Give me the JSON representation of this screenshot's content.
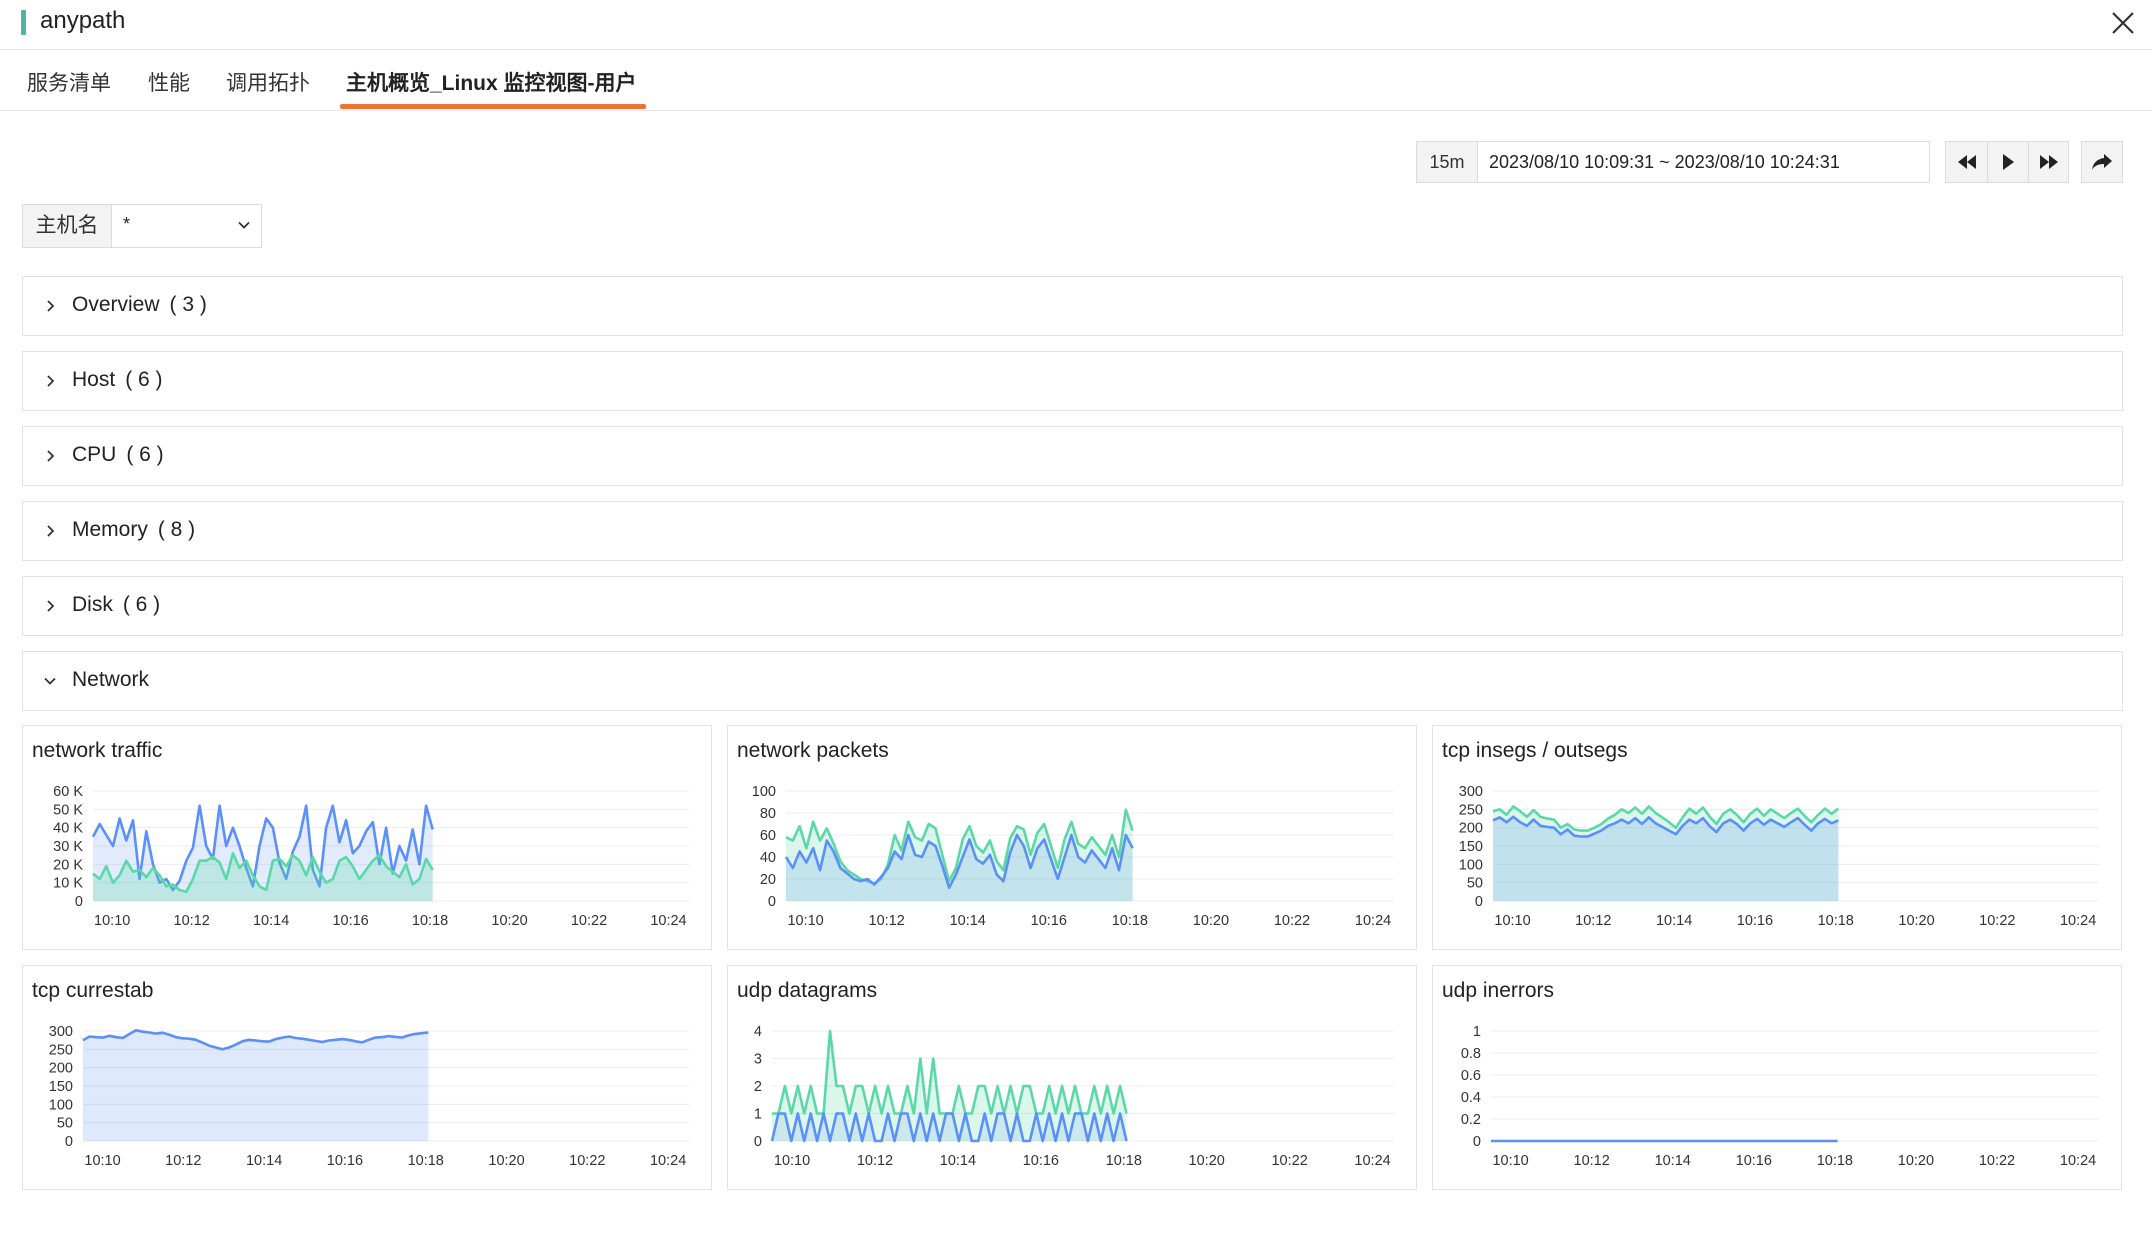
{
  "window": {
    "title": "anypath"
  },
  "tabs": [
    {
      "label": "服务清单",
      "active": false
    },
    {
      "label": "性能",
      "active": false
    },
    {
      "label": "调用拓扑",
      "active": false
    },
    {
      "label": "主机概览_Linux 监控视图-用户",
      "active": true
    }
  ],
  "time": {
    "preset": "15m",
    "range": "2023/08/10 10:09:31 ~ 2023/08/10 10:24:31"
  },
  "filter": {
    "label": "主机名",
    "value": "*"
  },
  "sections": [
    {
      "title": "Overview",
      "count": "( 3 )",
      "expanded": false
    },
    {
      "title": "Host",
      "count": "( 6 )",
      "expanded": false
    },
    {
      "title": "CPU",
      "count": "( 6 )",
      "expanded": false
    },
    {
      "title": "Memory",
      "count": "( 8 )",
      "expanded": false
    },
    {
      "title": "Disk",
      "count": "( 6 )",
      "expanded": false
    },
    {
      "title": "Network",
      "count": "",
      "expanded": true
    }
  ],
  "colors": {
    "accent": "#f07233",
    "blue": "#5b8ff9",
    "teal": "#5ad8a6",
    "title_bar": "#4fb3a8"
  },
  "chart_data": [
    {
      "type": "area",
      "title": "network traffic",
      "x_ticks": [
        "10:10",
        "10:12",
        "10:14",
        "10:16",
        "10:18",
        "10:20",
        "10:22",
        "10:24"
      ],
      "y_ticks": [
        "0",
        "10 K",
        "20 K",
        "30 K",
        "40 K",
        "50 K",
        "60 K"
      ],
      "ylim": [
        0,
        60000
      ],
      "x_range": [
        "10:09:31",
        "10:24:31"
      ],
      "series": [
        {
          "values": [
            35000,
            42000,
            36000,
            30000,
            45000,
            33000,
            44000,
            12000,
            38000,
            20000,
            10000,
            12000,
            6000,
            11000,
            22000,
            29000,
            52000,
            30000,
            23000,
            52000,
            30000,
            40000,
            30000,
            18000,
            8000,
            30000,
            45000,
            40000,
            21000,
            12000,
            27000,
            35000,
            52000,
            17000,
            8000,
            40000,
            52000,
            32000,
            44000,
            26000,
            30000,
            38000,
            43000,
            20000,
            40000,
            15000,
            30000,
            22000,
            39000,
            20000,
            52000,
            39000
          ]
        },
        {
          "values": [
            15000,
            12000,
            19000,
            10000,
            14000,
            22000,
            16000,
            17000,
            13000,
            18000,
            14000,
            8000,
            9000,
            6000,
            5000,
            12000,
            22000,
            22000,
            24000,
            21000,
            12000,
            26000,
            18000,
            22000,
            14000,
            8000,
            6000,
            22000,
            23000,
            19000,
            25000,
            22000,
            14000,
            24000,
            16000,
            10000,
            12000,
            22000,
            24000,
            19000,
            12000,
            17000,
            22000,
            25000,
            19000,
            16000,
            13000,
            20000,
            9000,
            12000,
            23000,
            17000
          ]
        }
      ]
    },
    {
      "type": "area",
      "title": "network packets",
      "x_ticks": [
        "10:10",
        "10:12",
        "10:14",
        "10:16",
        "10:18",
        "10:20",
        "10:22",
        "10:24"
      ],
      "y_ticks": [
        "0",
        "20",
        "40",
        "60",
        "80",
        "100"
      ],
      "ylim": [
        0,
        100
      ],
      "x_range": [
        "10:09:31",
        "10:24:31"
      ],
      "series": [
        {
          "values": [
            58,
            55,
            68,
            48,
            72,
            55,
            66,
            52,
            36,
            28,
            24,
            20,
            18,
            16,
            20,
            33,
            60,
            46,
            72,
            58,
            55,
            70,
            66,
            42,
            18,
            30,
            56,
            68,
            50,
            44,
            55,
            36,
            28,
            57,
            68,
            65,
            42,
            62,
            70,
            50,
            30,
            56,
            72,
            52,
            48,
            58,
            50,
            42,
            60,
            40,
            83,
            64
          ]
        },
        {
          "values": [
            40,
            30,
            45,
            35,
            48,
            28,
            55,
            45,
            30,
            25,
            20,
            18,
            20,
            15,
            22,
            30,
            45,
            38,
            60,
            42,
            40,
            54,
            50,
            32,
            12,
            24,
            40,
            56,
            38,
            34,
            42,
            24,
            18,
            44,
            60,
            50,
            30,
            48,
            56,
            38,
            20,
            40,
            60,
            40,
            35,
            46,
            38,
            30,
            48,
            28,
            60,
            48
          ]
        }
      ]
    },
    {
      "type": "area",
      "title": "tcp insegs / outsegs",
      "x_ticks": [
        "10:10",
        "10:12",
        "10:14",
        "10:16",
        "10:18",
        "10:20",
        "10:22",
        "10:24"
      ],
      "y_ticks": [
        "0",
        "50",
        "100",
        "150",
        "200",
        "250",
        "300"
      ],
      "ylim": [
        0,
        300
      ],
      "x_range": [
        "10:09:31",
        "10:24:31"
      ],
      "series": [
        {
          "values": [
            245,
            250,
            235,
            258,
            245,
            230,
            248,
            230,
            225,
            222,
            200,
            210,
            195,
            192,
            192,
            200,
            210,
            225,
            235,
            250,
            240,
            255,
            238,
            258,
            240,
            228,
            215,
            200,
            228,
            252,
            238,
            255,
            230,
            210,
            238,
            250,
            235,
            215,
            238,
            252,
            232,
            250,
            238,
            226,
            240,
            252,
            232,
            215,
            235,
            252,
            238,
            252
          ]
        },
        {
          "values": [
            220,
            228,
            215,
            230,
            215,
            205,
            222,
            205,
            202,
            200,
            182,
            195,
            178,
            176,
            176,
            184,
            192,
            205,
            212,
            222,
            212,
            226,
            210,
            228,
            212,
            202,
            192,
            182,
            205,
            222,
            212,
            226,
            204,
            188,
            212,
            222,
            210,
            192,
            212,
            224,
            208,
            222,
            212,
            202,
            215,
            226,
            208,
            192,
            212,
            224,
            212,
            220
          ]
        }
      ]
    },
    {
      "type": "area",
      "title": "tcp currestab",
      "x_ticks": [
        "10:10",
        "10:12",
        "10:14",
        "10:16",
        "10:18",
        "10:20",
        "10:22",
        "10:24"
      ],
      "y_ticks": [
        "0",
        "50",
        "100",
        "150",
        "200",
        "250",
        "300"
      ],
      "ylim": [
        0,
        300
      ],
      "x_range": [
        "10:09:31",
        "10:24:31"
      ],
      "series": [
        {
          "values": [
            275,
            285,
            283,
            282,
            287,
            283,
            281,
            292,
            302,
            298,
            296,
            293,
            295,
            290,
            283,
            280,
            279,
            276,
            268,
            260,
            255,
            250,
            255,
            263,
            272,
            276,
            274,
            272,
            271,
            278,
            282,
            285,
            281,
            279,
            276,
            273,
            270,
            274,
            276,
            278,
            276,
            272,
            269,
            276,
            282,
            283,
            286,
            284,
            282,
            288,
            292,
            294,
            296
          ]
        }
      ]
    },
    {
      "type": "area",
      "title": "udp datagrams",
      "x_ticks": [
        "10:10",
        "10:12",
        "10:14",
        "10:16",
        "10:18",
        "10:20",
        "10:22",
        "10:24"
      ],
      "y_ticks": [
        "0",
        "1",
        "2",
        "3",
        "4"
      ],
      "ylim": [
        0,
        4
      ],
      "x_range": [
        "10:09:31",
        "10:24:31"
      ],
      "series": [
        {
          "values": [
            1,
            1,
            2,
            1,
            2,
            1,
            2,
            1,
            1,
            4,
            2,
            2,
            1,
            2,
            2,
            1,
            2,
            1,
            2,
            1,
            1,
            2,
            1,
            3,
            1,
            3,
            1,
            1,
            1,
            2,
            1,
            1,
            2,
            2,
            1,
            2,
            1,
            2,
            1,
            2,
            2,
            1,
            1,
            2,
            1,
            2,
            1,
            2,
            1,
            1,
            2,
            1,
            2,
            1,
            2,
            1
          ]
        },
        {
          "values": [
            0,
            1,
            1,
            0,
            1,
            0,
            1,
            0,
            1,
            0,
            1,
            1,
            0,
            1,
            0,
            1,
            0,
            0,
            1,
            0,
            1,
            1,
            0,
            1,
            0,
            1,
            0,
            1,
            1,
            0,
            1,
            0,
            0,
            1,
            0,
            1,
            1,
            0,
            1,
            0,
            0,
            1,
            0,
            1,
            0,
            1,
            0,
            1,
            1,
            0,
            1,
            0,
            1,
            0,
            1,
            0
          ]
        }
      ]
    },
    {
      "type": "line",
      "title": "udp inerrors",
      "x_ticks": [
        "10:10",
        "10:12",
        "10:14",
        "10:16",
        "10:18",
        "10:20",
        "10:22",
        "10:24"
      ],
      "y_ticks": [
        "0",
        "0.2",
        "0.4",
        "0.6",
        "0.8",
        "1"
      ],
      "ylim": [
        0,
        1
      ],
      "x_range": [
        "10:09:31",
        "10:24:31"
      ],
      "series": [
        {
          "values": [
            0,
            0,
            0,
            0,
            0,
            0,
            0,
            0,
            0,
            0,
            0,
            0,
            0,
            0,
            0,
            0,
            0,
            0,
            0,
            0,
            0,
            0,
            0,
            0,
            0,
            0,
            0,
            0,
            0,
            0,
            0,
            0,
            0,
            0,
            0,
            0,
            0,
            0,
            0,
            0,
            0,
            0,
            0,
            0,
            0,
            0,
            0,
            0,
            0,
            0
          ]
        }
      ]
    }
  ]
}
